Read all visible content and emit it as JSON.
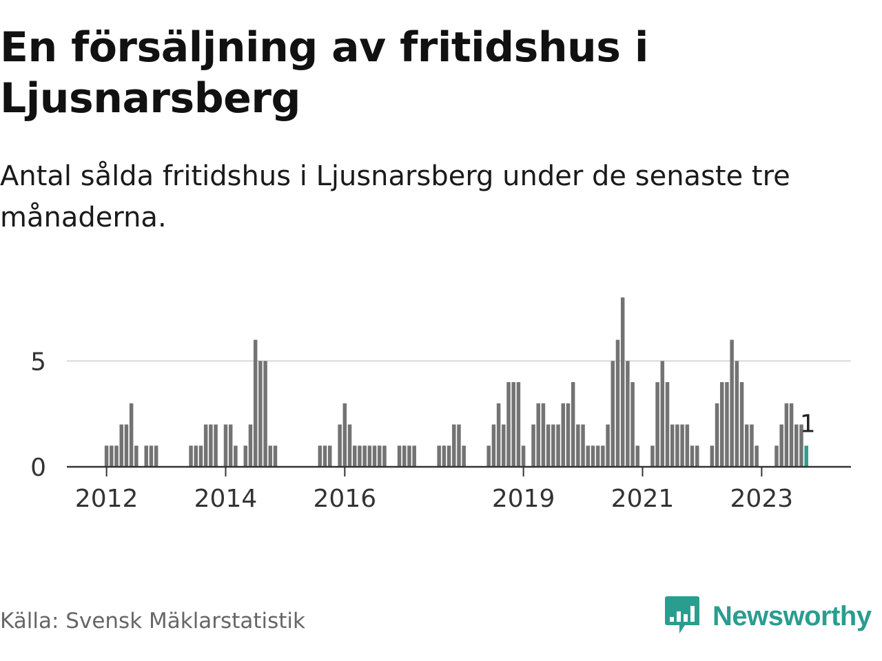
{
  "title": "En försäljning av fritidshus i Ljusnarsberg",
  "subtitle": "Antal sålda fritidshus i Ljusnarsberg under de senaste tre månaderna.",
  "source": "Källa: Svensk Mäklarstatistik",
  "brand": "Newsworthy",
  "colors": {
    "bar": "#737373",
    "highlight": "#2a9d8f",
    "grid": "#d9d9d9",
    "axis": "#333333"
  },
  "chart_data": {
    "type": "bar",
    "title": "En försäljning av fritidshus i Ljusnarsberg",
    "subtitle": "Antal sålda fritidshus i Ljusnarsberg under de senaste tre månaderna.",
    "xlabel": "",
    "ylabel": "",
    "ylim": [
      0,
      8
    ],
    "xlim": [
      "2011-05",
      "2024-07"
    ],
    "yticks": [
      0,
      5
    ],
    "xticks": [
      {
        "x": "2012-01",
        "label": "2012"
      },
      {
        "x": "2014-01",
        "label": "2014"
      },
      {
        "x": "2016-01",
        "label": "2016"
      },
      {
        "x": "2019-01",
        "label": "2019"
      },
      {
        "x": "2021-01",
        "label": "2021"
      },
      {
        "x": "2023-01",
        "label": "2023"
      }
    ],
    "grid": "horizontal",
    "highlight_label": "1",
    "values": [
      {
        "x": "2012-01",
        "y": 1
      },
      {
        "x": "2012-02",
        "y": 1
      },
      {
        "x": "2012-03",
        "y": 1
      },
      {
        "x": "2012-04",
        "y": 2
      },
      {
        "x": "2012-05",
        "y": 2
      },
      {
        "x": "2012-06",
        "y": 3
      },
      {
        "x": "2012-07",
        "y": 1
      },
      {
        "x": "2012-09",
        "y": 1
      },
      {
        "x": "2012-10",
        "y": 1
      },
      {
        "x": "2012-11",
        "y": 1
      },
      {
        "x": "2013-06",
        "y": 1
      },
      {
        "x": "2013-07",
        "y": 1
      },
      {
        "x": "2013-08",
        "y": 1
      },
      {
        "x": "2013-09",
        "y": 2
      },
      {
        "x": "2013-10",
        "y": 2
      },
      {
        "x": "2013-11",
        "y": 2
      },
      {
        "x": "2014-01",
        "y": 2
      },
      {
        "x": "2014-02",
        "y": 2
      },
      {
        "x": "2014-03",
        "y": 1
      },
      {
        "x": "2014-05",
        "y": 1
      },
      {
        "x": "2014-06",
        "y": 2
      },
      {
        "x": "2014-07",
        "y": 6
      },
      {
        "x": "2014-08",
        "y": 5
      },
      {
        "x": "2014-09",
        "y": 5
      },
      {
        "x": "2014-10",
        "y": 1
      },
      {
        "x": "2014-11",
        "y": 1
      },
      {
        "x": "2015-08",
        "y": 1
      },
      {
        "x": "2015-09",
        "y": 1
      },
      {
        "x": "2015-10",
        "y": 1
      },
      {
        "x": "2015-12",
        "y": 2
      },
      {
        "x": "2016-01",
        "y": 3
      },
      {
        "x": "2016-02",
        "y": 2
      },
      {
        "x": "2016-03",
        "y": 1
      },
      {
        "x": "2016-04",
        "y": 1
      },
      {
        "x": "2016-05",
        "y": 1
      },
      {
        "x": "2016-06",
        "y": 1
      },
      {
        "x": "2016-07",
        "y": 1
      },
      {
        "x": "2016-08",
        "y": 1
      },
      {
        "x": "2016-09",
        "y": 1
      },
      {
        "x": "2016-12",
        "y": 1
      },
      {
        "x": "2017-01",
        "y": 1
      },
      {
        "x": "2017-02",
        "y": 1
      },
      {
        "x": "2017-03",
        "y": 1
      },
      {
        "x": "2017-08",
        "y": 1
      },
      {
        "x": "2017-09",
        "y": 1
      },
      {
        "x": "2017-10",
        "y": 1
      },
      {
        "x": "2017-11",
        "y": 2
      },
      {
        "x": "2017-12",
        "y": 2
      },
      {
        "x": "2018-01",
        "y": 1
      },
      {
        "x": "2018-06",
        "y": 1
      },
      {
        "x": "2018-07",
        "y": 2
      },
      {
        "x": "2018-08",
        "y": 3
      },
      {
        "x": "2018-09",
        "y": 2
      },
      {
        "x": "2018-10",
        "y": 4
      },
      {
        "x": "2018-11",
        "y": 4
      },
      {
        "x": "2018-12",
        "y": 4
      },
      {
        "x": "2019-01",
        "y": 1
      },
      {
        "x": "2019-03",
        "y": 2
      },
      {
        "x": "2019-04",
        "y": 3
      },
      {
        "x": "2019-05",
        "y": 3
      },
      {
        "x": "2019-06",
        "y": 2
      },
      {
        "x": "2019-07",
        "y": 2
      },
      {
        "x": "2019-08",
        "y": 2
      },
      {
        "x": "2019-09",
        "y": 3
      },
      {
        "x": "2019-10",
        "y": 3
      },
      {
        "x": "2019-11",
        "y": 4
      },
      {
        "x": "2019-12",
        "y": 2
      },
      {
        "x": "2020-01",
        "y": 2
      },
      {
        "x": "2020-02",
        "y": 1
      },
      {
        "x": "2020-03",
        "y": 1
      },
      {
        "x": "2020-04",
        "y": 1
      },
      {
        "x": "2020-05",
        "y": 1
      },
      {
        "x": "2020-06",
        "y": 2
      },
      {
        "x": "2020-07",
        "y": 5
      },
      {
        "x": "2020-08",
        "y": 6
      },
      {
        "x": "2020-09",
        "y": 8
      },
      {
        "x": "2020-10",
        "y": 5
      },
      {
        "x": "2020-11",
        "y": 4
      },
      {
        "x": "2020-12",
        "y": 1
      },
      {
        "x": "2021-03",
        "y": 1
      },
      {
        "x": "2021-04",
        "y": 4
      },
      {
        "x": "2021-05",
        "y": 5
      },
      {
        "x": "2021-06",
        "y": 4
      },
      {
        "x": "2021-07",
        "y": 2
      },
      {
        "x": "2021-08",
        "y": 2
      },
      {
        "x": "2021-09",
        "y": 2
      },
      {
        "x": "2021-10",
        "y": 2
      },
      {
        "x": "2021-11",
        "y": 1
      },
      {
        "x": "2021-12",
        "y": 1
      },
      {
        "x": "2022-03",
        "y": 1
      },
      {
        "x": "2022-04",
        "y": 3
      },
      {
        "x": "2022-05",
        "y": 4
      },
      {
        "x": "2022-06",
        "y": 4
      },
      {
        "x": "2022-07",
        "y": 6
      },
      {
        "x": "2022-08",
        "y": 5
      },
      {
        "x": "2022-09",
        "y": 4
      },
      {
        "x": "2022-10",
        "y": 2
      },
      {
        "x": "2022-11",
        "y": 2
      },
      {
        "x": "2022-12",
        "y": 1
      },
      {
        "x": "2023-04",
        "y": 1
      },
      {
        "x": "2023-05",
        "y": 2
      },
      {
        "x": "2023-06",
        "y": 3
      },
      {
        "x": "2023-07",
        "y": 3
      },
      {
        "x": "2023-08",
        "y": 2
      },
      {
        "x": "2023-09",
        "y": 2
      },
      {
        "x": "2023-10",
        "y": 1,
        "highlight": true
      }
    ]
  }
}
